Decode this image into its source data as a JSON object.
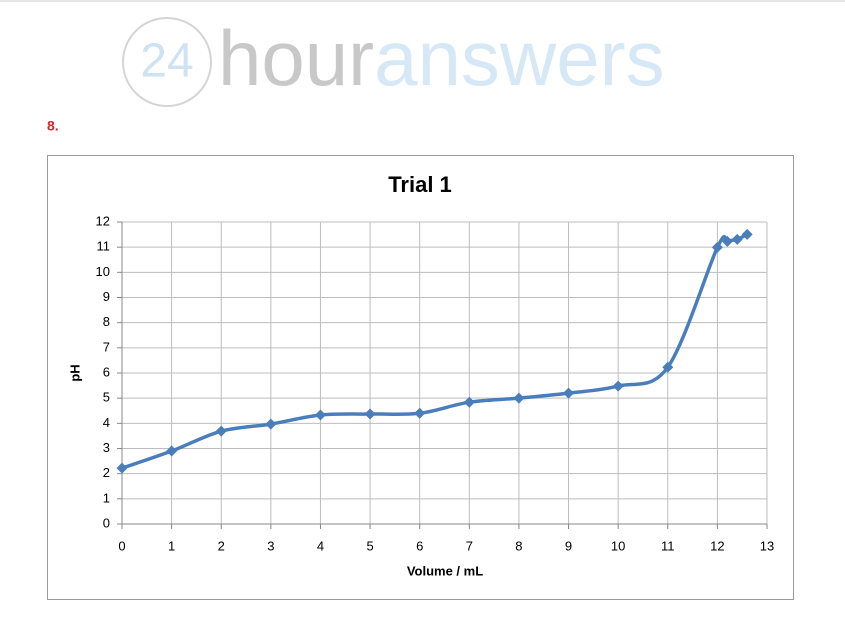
{
  "logo": {
    "number": "24",
    "word1": "hour",
    "word2": "answers"
  },
  "question_number": "8.",
  "chart_data": {
    "type": "line",
    "title": "Trial 1",
    "x_label": "Volume / mL",
    "y_label": "pH",
    "x": [
      0,
      1,
      2,
      3,
      4,
      5,
      6,
      7,
      8,
      9,
      10,
      11,
      12,
      12.2,
      12.4,
      12.6
    ],
    "series": [
      {
        "name": "Trial 1",
        "color": "#4a7ebb",
        "values": [
          2.22,
          2.9,
          3.69,
          3.97,
          4.33,
          4.37,
          4.4,
          4.84,
          5.0,
          5.2,
          5.48,
          6.23,
          10.99,
          11.23,
          11.31,
          11.51
        ]
      }
    ],
    "xlim": [
      0,
      13
    ],
    "xticks": [
      0,
      1,
      2,
      3,
      4,
      5,
      6,
      7,
      8,
      9,
      10,
      11,
      12,
      13
    ],
    "ylim": [
      0,
      12
    ],
    "yticks": [
      0,
      1,
      2,
      3,
      4,
      5,
      6,
      7,
      8,
      9,
      10,
      11,
      12
    ],
    "grid": true,
    "smooth": true,
    "marker": "diamond"
  }
}
